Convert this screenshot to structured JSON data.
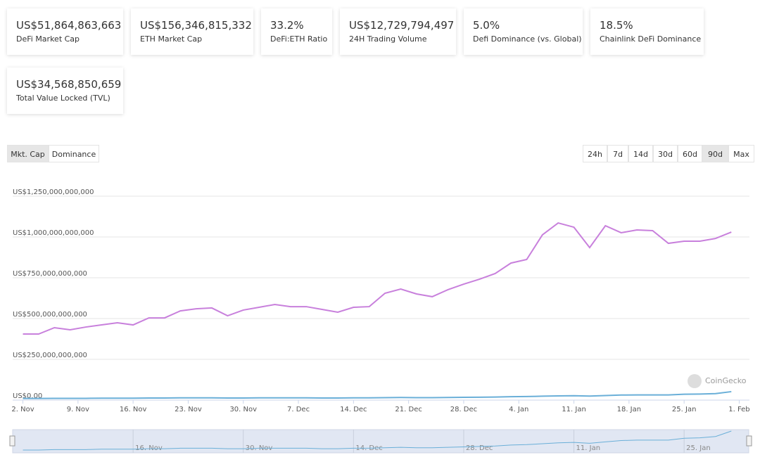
{
  "stats": [
    {
      "value": "US$51,864,863,663",
      "label": "DeFi Market Cap"
    },
    {
      "value": "US$156,346,815,332",
      "label": "ETH Market Cap"
    },
    {
      "value": "33.2%",
      "label": "DeFi:ETH Ratio"
    },
    {
      "value": "US$12,729,794,497",
      "label": "24H Trading Volume"
    },
    {
      "value": "5.0%",
      "label": "Defi Dominance (vs. Global)"
    },
    {
      "value": "18.5%",
      "label": "Chainlink DeFi Dominance"
    },
    {
      "value": "US$34,568,850,659",
      "label": "Total Value Locked (TVL)"
    }
  ],
  "view_buttons": [
    "Mkt. Cap",
    "Dominance"
  ],
  "range_buttons": [
    "24h",
    "7d",
    "14d",
    "30d",
    "60d",
    "90d",
    "Max"
  ],
  "chart_data": {
    "type": "line",
    "watermark": "CoinGecko",
    "x": [
      0,
      2,
      4,
      6,
      8,
      10,
      12,
      14,
      16,
      18,
      20,
      22,
      24,
      26,
      28,
      30,
      32,
      34,
      36,
      38,
      40,
      42,
      44,
      46,
      48,
      50,
      52,
      54,
      56,
      58,
      60,
      62,
      64,
      66,
      68,
      70,
      72,
      74,
      76,
      78,
      80,
      82,
      84,
      86,
      88,
      90
    ],
    "series": [
      {
        "color": "#c880dc",
        "values": [
          405000000000,
          405000000000,
          444000000000,
          431000000000,
          448000000000,
          461000000000,
          474000000000,
          461000000000,
          504000000000,
          504000000000,
          547000000000,
          560000000000,
          565000000000,
          517000000000,
          552000000000,
          569000000000,
          586000000000,
          573000000000,
          573000000000,
          556000000000,
          539000000000,
          569000000000,
          573000000000,
          655000000000,
          681000000000,
          651000000000,
          634000000000,
          677000000000,
          711000000000,
          741000000000,
          776000000000,
          840000000000,
          862000000000,
          1013000000000,
          1086000000000,
          1060000000000,
          935000000000,
          1069000000000,
          1026000000000,
          1043000000000,
          1039000000000,
          961000000000,
          974000000000,
          974000000000,
          991000000000,
          1030000000000
        ]
      },
      {
        "color": "#6aafd8",
        "values": [
          10000000000,
          10000000000,
          11000000000,
          11000000000,
          11000000000,
          12000000000,
          12000000000,
          12000000000,
          13000000000,
          13000000000,
          14000000000,
          14000000000,
          14000000000,
          13000000000,
          13000000000,
          14000000000,
          14000000000,
          14000000000,
          14000000000,
          13000000000,
          13000000000,
          14000000000,
          14000000000,
          15000000000,
          16000000000,
          15000000000,
          15000000000,
          16000000000,
          17000000000,
          18000000000,
          19000000000,
          21000000000,
          22000000000,
          24000000000,
          26000000000,
          27000000000,
          25000000000,
          28000000000,
          31000000000,
          32000000000,
          32000000000,
          32000000000,
          36000000000,
          37000000000,
          40000000000,
          52000000000
        ]
      }
    ],
    "xlim": [
      -1.3,
      92.3
    ],
    "xticks": [
      {
        "value": 0,
        "label": "2. Nov"
      },
      {
        "value": 7,
        "label": "9. Nov"
      },
      {
        "value": 14,
        "label": "16. Nov"
      },
      {
        "value": 21,
        "label": "23. Nov"
      },
      {
        "value": 28,
        "label": "30. Nov"
      },
      {
        "value": 35,
        "label": "7. Dec"
      },
      {
        "value": 42,
        "label": "14. Dec"
      },
      {
        "value": 49,
        "label": "21. Dec"
      },
      {
        "value": 56,
        "label": "28. Dec"
      },
      {
        "value": 63,
        "label": "4. Jan"
      },
      {
        "value": 70,
        "label": "11. Jan"
      },
      {
        "value": 77,
        "label": "18. Jan"
      },
      {
        "value": 84,
        "label": "25. Jan"
      },
      {
        "value": 91,
        "label": "1. Feb"
      }
    ],
    "ylim": [
      0,
      1250000000000
    ],
    "yticks": [
      {
        "value": 0,
        "label": "US$0.00"
      },
      {
        "value": 250000000000,
        "label": "US$250,000,000,000"
      },
      {
        "value": 500000000000,
        "label": "US$500,000,000,000"
      },
      {
        "value": 750000000000,
        "label": "US$750,000,000,000"
      },
      {
        "value": 1000000000000,
        "label": "US$1,000,000,000,000"
      },
      {
        "value": 1250000000000,
        "label": "US$1,250,000,000,000"
      }
    ],
    "grid": true
  }
}
